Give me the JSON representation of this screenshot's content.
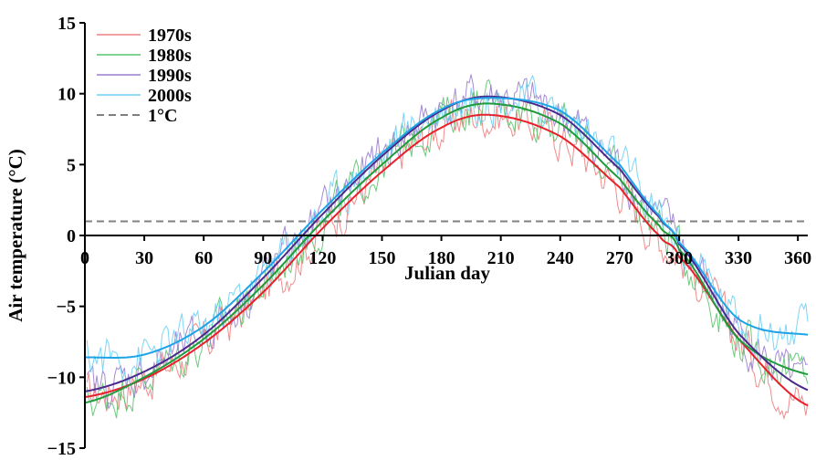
{
  "chart_data": {
    "type": "line",
    "title": "",
    "xlabel": "Julian day",
    "ylabel": "Air temperature (°C)",
    "xlim": [
      0,
      365
    ],
    "ylim": [
      -15,
      15
    ],
    "xticks": [
      "0",
      "30",
      "60",
      "90",
      "120",
      "150",
      "180",
      "210",
      "240",
      "270",
      "300",
      "330",
      "360"
    ],
    "yticks": [
      "15",
      "10",
      "5",
      "0",
      "−5",
      "−10",
      "−15"
    ],
    "grid": false,
    "legend_position": "top-left",
    "series": [
      {
        "name": "1970s",
        "color": "#e8202a",
        "raw_color": "#f08080",
        "fit": {
          "x": [
            0,
            30,
            60,
            90,
            120,
            150,
            180,
            205,
            240,
            270,
            290,
            300,
            330,
            365
          ],
          "y": [
            -11.4,
            -10.1,
            -7.6,
            -4.0,
            0.5,
            4.5,
            7.6,
            8.5,
            7.0,
            3.4,
            0.0,
            -1.5,
            -7.3,
            -12.0
          ]
        }
      },
      {
        "name": "1980s",
        "color": "#1f9a3c",
        "raw_color": "#5cc46e",
        "fit": {
          "x": [
            0,
            30,
            60,
            90,
            120,
            150,
            180,
            205,
            240,
            270,
            290,
            300,
            330,
            365
          ],
          "y": [
            -11.8,
            -10.0,
            -7.3,
            -3.5,
            1.0,
            5.0,
            8.3,
            9.3,
            7.9,
            4.0,
            0.7,
            -1.0,
            -7.3,
            -9.8
          ]
        }
      },
      {
        "name": "1990s",
        "color": "#4b2a8c",
        "raw_color": "#9b7fd0",
        "fit": {
          "x": [
            0,
            30,
            60,
            90,
            120,
            150,
            180,
            205,
            240,
            270,
            290,
            300,
            330,
            365
          ],
          "y": [
            -11.0,
            -9.6,
            -7.0,
            -3.0,
            1.5,
            5.6,
            8.8,
            9.8,
            8.5,
            4.7,
            1.3,
            -0.6,
            -6.9,
            -10.9
          ]
        }
      },
      {
        "name": "2000s",
        "color": "#1ea3e6",
        "raw_color": "#6fd0f5",
        "fit": {
          "x": [
            0,
            30,
            60,
            90,
            120,
            150,
            180,
            205,
            240,
            270,
            290,
            300,
            330,
            365
          ],
          "y": [
            -8.6,
            -8.4,
            -6.4,
            -2.6,
            1.8,
            5.8,
            8.9,
            9.7,
            8.8,
            5.0,
            1.4,
            -0.5,
            -5.9,
            -7.0
          ]
        }
      },
      {
        "name": "1°C",
        "color": "#808080",
        "dashed": true,
        "fit": {
          "x": [
            0,
            365
          ],
          "y": [
            1,
            1
          ]
        }
      }
    ]
  }
}
